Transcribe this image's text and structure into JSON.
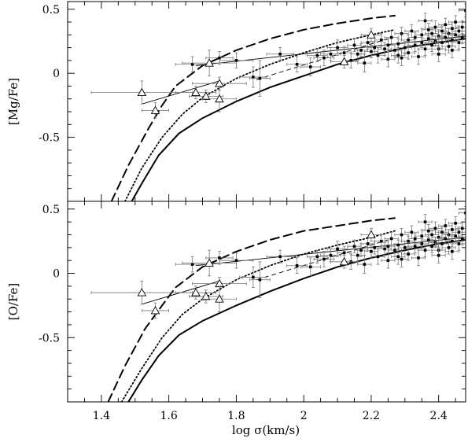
{
  "chart_data": [
    {
      "type": "scatter",
      "title": "",
      "ylabel": "[Mg/Fe]",
      "xlabel": "",
      "xlim": [
        1.3,
        2.48
      ],
      "ylim": [
        -1.0,
        0.56
      ],
      "xticks": [
        "1.4",
        "1.6",
        "1.8",
        "2",
        "2.2",
        "2.4"
      ],
      "xtick_values": [
        1.4,
        1.6,
        1.8,
        2.0,
        2.2,
        2.4
      ],
      "yticks": [
        "0.5",
        "0",
        "-0.5"
      ],
      "ytick_values": [
        0.5,
        0.0,
        -0.5
      ],
      "grid": false,
      "legend": "none",
      "model_curves": [
        {
          "style": "dashed-long",
          "x": [
            1.43,
            1.48,
            1.54,
            1.58,
            1.62,
            1.7,
            1.8,
            1.9,
            2.0,
            2.1,
            2.2,
            2.27
          ],
          "y": [
            -1.0,
            -0.72,
            -0.43,
            -0.25,
            -0.1,
            0.06,
            0.18,
            0.27,
            0.34,
            0.39,
            0.43,
            0.45
          ]
        },
        {
          "style": "dotted",
          "x": [
            1.47,
            1.52,
            1.58,
            1.64,
            1.7,
            1.8,
            1.9,
            2.0,
            2.1,
            2.2,
            2.27
          ],
          "y": [
            -1.0,
            -0.74,
            -0.5,
            -0.32,
            -0.19,
            -0.04,
            0.07,
            0.16,
            0.24,
            0.3,
            0.34
          ]
        },
        {
          "style": "solid-thick",
          "x": [
            1.49,
            1.52,
            1.57,
            1.63,
            1.7,
            1.8,
            1.9,
            2.0,
            2.1,
            2.2,
            2.3,
            2.4,
            2.48
          ],
          "y": [
            -1.0,
            -0.86,
            -0.64,
            -0.47,
            -0.35,
            -0.22,
            -0.11,
            -0.02,
            0.07,
            0.14,
            0.2,
            0.24,
            0.27
          ]
        }
      ],
      "fit_lines": [
        {
          "style": "thin-solid",
          "x": [
            1.68,
            2.48
          ],
          "y": [
            0.06,
            0.29
          ]
        },
        {
          "style": "thin-solid",
          "x": [
            1.52,
            1.75
          ],
          "y": [
            -0.24,
            -0.06
          ]
        },
        {
          "style": "thin-dashed",
          "x": [
            1.86,
            2.25
          ],
          "y": [
            -0.05,
            0.27
          ]
        }
      ],
      "triangles": [
        {
          "x": 1.52,
          "y": -0.15,
          "xerr": 0.15,
          "yerr": 0.09
        },
        {
          "x": 1.56,
          "y": -0.29,
          "xerr": 0.04,
          "yerr": 0.06
        },
        {
          "x": 1.68,
          "y": -0.15,
          "xerr": 0.06,
          "yerr": 0.05
        },
        {
          "x": 1.71,
          "y": -0.18,
          "xerr": 0.05,
          "yerr": 0.05
        },
        {
          "x": 1.72,
          "y": 0.08,
          "xerr": 0.08,
          "yerr": 0.1
        },
        {
          "x": 1.75,
          "y": -0.08,
          "xerr": 0.08,
          "yerr": 0.05
        },
        {
          "x": 1.75,
          "y": -0.2,
          "xerr": 0.05,
          "yerr": 0.1
        },
        {
          "x": 2.12,
          "y": 0.09,
          "xerr": 0.04,
          "yerr": 0.05
        },
        {
          "x": 2.2,
          "y": 0.3,
          "xerr": 0.03,
          "yerr": 0.05
        }
      ],
      "points": [
        [
          1.67,
          0.07,
          0.05,
          0.06
        ],
        [
          1.75,
          0.12,
          0.04,
          0.05
        ],
        [
          1.8,
          0.1,
          0.05,
          0.06
        ],
        [
          1.85,
          -0.03,
          0.04,
          0.08
        ],
        [
          1.87,
          -0.04,
          0.03,
          0.14
        ],
        [
          1.93,
          0.15,
          0.04,
          0.05
        ],
        [
          1.98,
          0.07,
          0.03,
          0.06
        ],
        [
          2.02,
          0.05,
          0.03,
          0.07
        ],
        [
          2.04,
          0.14,
          0.03,
          0.05
        ],
        [
          2.06,
          0.12,
          0.03,
          0.06
        ],
        [
          2.08,
          0.15,
          0.03,
          0.05
        ],
        [
          2.1,
          0.2,
          0.03,
          0.06
        ],
        [
          2.12,
          0.16,
          0.02,
          0.05
        ],
        [
          2.14,
          0.1,
          0.02,
          0.06
        ],
        [
          2.15,
          0.22,
          0.02,
          0.05
        ],
        [
          2.16,
          0.15,
          0.02,
          0.05
        ],
        [
          2.17,
          0.18,
          0.02,
          0.05
        ],
        [
          2.18,
          0.08,
          0.02,
          0.07
        ],
        [
          2.19,
          0.24,
          0.02,
          0.05
        ],
        [
          2.2,
          0.17,
          0.02,
          0.05
        ],
        [
          2.21,
          0.2,
          0.02,
          0.05
        ],
        [
          2.22,
          0.14,
          0.02,
          0.06
        ],
        [
          2.23,
          0.26,
          0.02,
          0.05
        ],
        [
          2.24,
          0.19,
          0.02,
          0.05
        ],
        [
          2.25,
          0.22,
          0.02,
          0.05
        ],
        [
          2.25,
          0.11,
          0.02,
          0.06
        ],
        [
          2.26,
          0.28,
          0.02,
          0.05
        ],
        [
          2.27,
          0.18,
          0.02,
          0.05
        ],
        [
          2.28,
          0.23,
          0.02,
          0.04
        ],
        [
          2.28,
          0.14,
          0.02,
          0.06
        ],
        [
          2.29,
          0.31,
          0.02,
          0.05
        ],
        [
          2.3,
          0.2,
          0.02,
          0.05
        ],
        [
          2.31,
          0.26,
          0.02,
          0.04
        ],
        [
          2.31,
          0.16,
          0.02,
          0.05
        ],
        [
          2.32,
          0.33,
          0.02,
          0.05
        ],
        [
          2.33,
          0.22,
          0.02,
          0.05
        ],
        [
          2.33,
          0.28,
          0.02,
          0.04
        ],
        [
          2.34,
          0.13,
          0.02,
          0.06
        ],
        [
          2.35,
          0.3,
          0.02,
          0.05
        ],
        [
          2.35,
          0.24,
          0.02,
          0.04
        ],
        [
          2.36,
          0.19,
          0.02,
          0.05
        ],
        [
          2.37,
          0.34,
          0.02,
          0.05
        ],
        [
          2.37,
          0.27,
          0.02,
          0.04
        ],
        [
          2.38,
          0.22,
          0.02,
          0.05
        ],
        [
          2.38,
          0.31,
          0.02,
          0.04
        ],
        [
          2.39,
          0.36,
          0.02,
          0.05
        ],
        [
          2.39,
          0.25,
          0.02,
          0.04
        ],
        [
          2.4,
          0.29,
          0.02,
          0.05
        ],
        [
          2.4,
          0.19,
          0.02,
          0.05
        ],
        [
          2.41,
          0.33,
          0.02,
          0.04
        ],
        [
          2.41,
          0.24,
          0.02,
          0.05
        ],
        [
          2.42,
          0.38,
          0.02,
          0.05
        ],
        [
          2.42,
          0.28,
          0.02,
          0.04
        ],
        [
          2.43,
          0.31,
          0.02,
          0.04
        ],
        [
          2.43,
          0.21,
          0.02,
          0.05
        ],
        [
          2.44,
          0.35,
          0.02,
          0.05
        ],
        [
          2.44,
          0.26,
          0.02,
          0.04
        ],
        [
          2.45,
          0.3,
          0.02,
          0.05
        ],
        [
          2.45,
          0.4,
          0.02,
          0.05
        ],
        [
          2.46,
          0.24,
          0.02,
          0.05
        ],
        [
          2.46,
          0.33,
          0.02,
          0.04
        ],
        [
          2.47,
          0.28,
          0.02,
          0.05
        ],
        [
          2.47,
          0.36,
          0.02,
          0.05
        ],
        [
          2.48,
          0.49,
          0.02,
          0.05
        ],
        [
          2.36,
          0.41,
          0.02,
          0.06
        ],
        [
          2.29,
          0.12,
          0.02,
          0.06
        ],
        [
          2.4,
          0.15,
          0.02,
          0.06
        ],
        [
          2.44,
          0.18,
          0.02,
          0.06
        ]
      ]
    },
    {
      "type": "scatter",
      "title": "",
      "ylabel": "[O/Fe]",
      "xlabel": "log σ(km/s)",
      "xlim": [
        1.3,
        2.48
      ],
      "ylim": [
        -1.0,
        0.56
      ],
      "xticks": [
        "1.4",
        "1.6",
        "1.8",
        "2",
        "2.2",
        "2.4"
      ],
      "xtick_values": [
        1.4,
        1.6,
        1.8,
        2.0,
        2.2,
        2.4
      ],
      "yticks": [
        "0.5",
        "0",
        "-0.5"
      ],
      "ytick_values": [
        0.5,
        0.0,
        -0.5
      ],
      "grid": false,
      "legend": "none",
      "model_curves": [
        {
          "style": "dashed-long",
          "x": [
            1.42,
            1.47,
            1.53,
            1.58,
            1.62,
            1.7,
            1.8,
            1.9,
            2.0,
            2.1,
            2.2,
            2.27
          ],
          "y": [
            -1.0,
            -0.72,
            -0.43,
            -0.25,
            -0.11,
            0.05,
            0.17,
            0.26,
            0.33,
            0.37,
            0.41,
            0.43
          ]
        },
        {
          "style": "dotted",
          "x": [
            1.46,
            1.52,
            1.58,
            1.64,
            1.7,
            1.8,
            1.9,
            2.0,
            2.1,
            2.2,
            2.27
          ],
          "y": [
            -1.0,
            -0.74,
            -0.5,
            -0.32,
            -0.2,
            -0.05,
            0.06,
            0.15,
            0.22,
            0.28,
            0.33
          ]
        },
        {
          "style": "solid-thick",
          "x": [
            1.48,
            1.52,
            1.57,
            1.63,
            1.7,
            1.8,
            1.9,
            2.0,
            2.1,
            2.2,
            2.3,
            2.4,
            2.48
          ],
          "y": [
            -1.0,
            -0.83,
            -0.64,
            -0.48,
            -0.37,
            -0.25,
            -0.14,
            -0.04,
            0.05,
            0.12,
            0.18,
            0.23,
            0.26
          ]
        }
      ],
      "fit_lines": [
        {
          "style": "thin-solid",
          "x": [
            1.68,
            2.48
          ],
          "y": [
            0.06,
            0.28
          ]
        },
        {
          "style": "thin-solid",
          "x": [
            1.52,
            1.75
          ],
          "y": [
            -0.24,
            -0.06
          ]
        },
        {
          "style": "thin-dashed",
          "x": [
            1.86,
            2.25
          ],
          "y": [
            -0.05,
            0.26
          ]
        }
      ],
      "triangles": [
        {
          "x": 1.52,
          "y": -0.15,
          "xerr": 0.15,
          "yerr": 0.09
        },
        {
          "x": 1.56,
          "y": -0.29,
          "xerr": 0.04,
          "yerr": 0.06
        },
        {
          "x": 1.68,
          "y": -0.15,
          "xerr": 0.06,
          "yerr": 0.05
        },
        {
          "x": 1.71,
          "y": -0.18,
          "xerr": 0.05,
          "yerr": 0.05
        },
        {
          "x": 1.72,
          "y": 0.08,
          "xerr": 0.08,
          "yerr": 0.1
        },
        {
          "x": 1.75,
          "y": -0.08,
          "xerr": 0.08,
          "yerr": 0.05
        },
        {
          "x": 1.75,
          "y": -0.2,
          "xerr": 0.05,
          "yerr": 0.1
        },
        {
          "x": 2.12,
          "y": 0.09,
          "xerr": 0.04,
          "yerr": 0.05
        },
        {
          "x": 2.2,
          "y": 0.3,
          "xerr": 0.03,
          "yerr": 0.05
        }
      ],
      "points": [
        [
          1.67,
          0.07,
          0.05,
          0.06
        ],
        [
          1.75,
          0.12,
          0.04,
          0.05
        ],
        [
          1.8,
          0.1,
          0.05,
          0.06
        ],
        [
          1.85,
          -0.03,
          0.04,
          0.08
        ],
        [
          1.87,
          -0.05,
          0.03,
          0.14
        ],
        [
          1.93,
          0.13,
          0.04,
          0.05
        ],
        [
          1.98,
          0.06,
          0.03,
          0.06
        ],
        [
          2.02,
          0.05,
          0.03,
          0.07
        ],
        [
          2.04,
          0.13,
          0.03,
          0.05
        ],
        [
          2.06,
          0.11,
          0.03,
          0.06
        ],
        [
          2.08,
          0.14,
          0.03,
          0.05
        ],
        [
          2.1,
          0.19,
          0.03,
          0.06
        ],
        [
          2.12,
          0.16,
          0.02,
          0.05
        ],
        [
          2.14,
          0.09,
          0.02,
          0.06
        ],
        [
          2.15,
          0.21,
          0.02,
          0.05
        ],
        [
          2.16,
          0.14,
          0.02,
          0.05
        ],
        [
          2.17,
          0.18,
          0.02,
          0.05
        ],
        [
          2.18,
          0.07,
          0.02,
          0.07
        ],
        [
          2.19,
          0.23,
          0.02,
          0.05
        ],
        [
          2.2,
          0.17,
          0.02,
          0.05
        ],
        [
          2.21,
          0.2,
          0.02,
          0.05
        ],
        [
          2.22,
          0.13,
          0.02,
          0.06
        ],
        [
          2.23,
          0.25,
          0.02,
          0.05
        ],
        [
          2.24,
          0.19,
          0.02,
          0.05
        ],
        [
          2.25,
          0.21,
          0.02,
          0.05
        ],
        [
          2.25,
          0.1,
          0.02,
          0.06
        ],
        [
          2.26,
          0.27,
          0.02,
          0.05
        ],
        [
          2.27,
          0.18,
          0.02,
          0.05
        ],
        [
          2.28,
          0.22,
          0.02,
          0.04
        ],
        [
          2.28,
          0.13,
          0.02,
          0.06
        ],
        [
          2.29,
          0.3,
          0.02,
          0.05
        ],
        [
          2.3,
          0.2,
          0.02,
          0.05
        ],
        [
          2.31,
          0.25,
          0.02,
          0.04
        ],
        [
          2.31,
          0.15,
          0.02,
          0.05
        ],
        [
          2.32,
          0.32,
          0.02,
          0.05
        ],
        [
          2.33,
          0.21,
          0.02,
          0.05
        ],
        [
          2.33,
          0.27,
          0.02,
          0.04
        ],
        [
          2.34,
          0.12,
          0.02,
          0.06
        ],
        [
          2.35,
          0.29,
          0.02,
          0.05
        ],
        [
          2.35,
          0.23,
          0.02,
          0.04
        ],
        [
          2.36,
          0.18,
          0.02,
          0.05
        ],
        [
          2.37,
          0.33,
          0.02,
          0.05
        ],
        [
          2.37,
          0.26,
          0.02,
          0.04
        ],
        [
          2.38,
          0.21,
          0.02,
          0.05
        ],
        [
          2.38,
          0.3,
          0.02,
          0.04
        ],
        [
          2.39,
          0.35,
          0.02,
          0.05
        ],
        [
          2.39,
          0.24,
          0.02,
          0.04
        ],
        [
          2.4,
          0.28,
          0.02,
          0.05
        ],
        [
          2.4,
          0.18,
          0.02,
          0.05
        ],
        [
          2.41,
          0.32,
          0.02,
          0.04
        ],
        [
          2.41,
          0.23,
          0.02,
          0.05
        ],
        [
          2.42,
          0.37,
          0.02,
          0.05
        ],
        [
          2.42,
          0.27,
          0.02,
          0.04
        ],
        [
          2.43,
          0.3,
          0.02,
          0.04
        ],
        [
          2.43,
          0.2,
          0.02,
          0.05
        ],
        [
          2.44,
          0.34,
          0.02,
          0.05
        ],
        [
          2.44,
          0.25,
          0.02,
          0.04
        ],
        [
          2.45,
          0.29,
          0.02,
          0.05
        ],
        [
          2.45,
          0.39,
          0.02,
          0.05
        ],
        [
          2.46,
          0.23,
          0.02,
          0.05
        ],
        [
          2.46,
          0.32,
          0.02,
          0.04
        ],
        [
          2.47,
          0.27,
          0.02,
          0.05
        ],
        [
          2.47,
          0.35,
          0.02,
          0.05
        ],
        [
          2.48,
          0.47,
          0.02,
          0.05
        ],
        [
          2.36,
          0.4,
          0.02,
          0.06
        ],
        [
          2.29,
          0.11,
          0.02,
          0.06
        ],
        [
          2.4,
          0.14,
          0.02,
          0.06
        ],
        [
          2.44,
          0.17,
          0.02,
          0.06
        ]
      ]
    }
  ]
}
